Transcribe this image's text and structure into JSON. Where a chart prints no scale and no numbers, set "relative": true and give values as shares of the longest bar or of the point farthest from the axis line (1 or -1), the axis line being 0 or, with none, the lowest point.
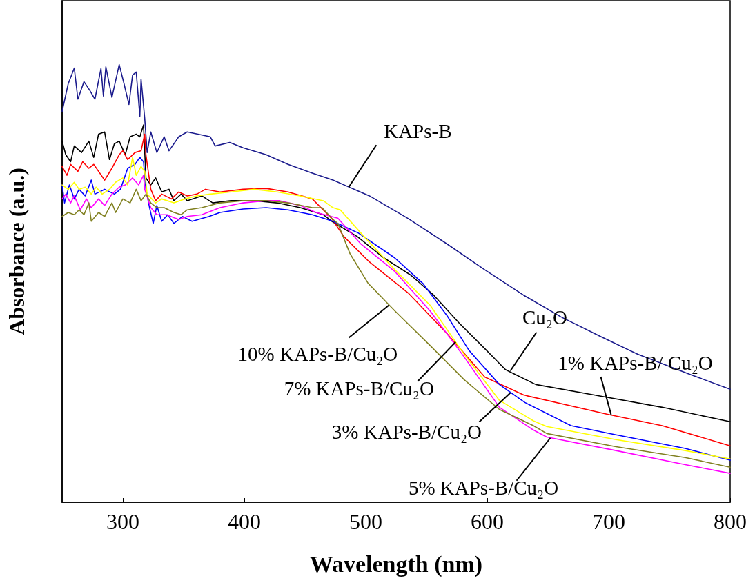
{
  "chart_data": {
    "type": "line",
    "xlabel": "Wavelength (nm)",
    "ylabel": "Absorbance (a.u.)",
    "relative": true,
    "annotations": [
      {
        "text": "KAPs-B",
        "x": 486,
        "y": 0.72
      },
      {
        "text": "Cu₂O",
        "x": 619,
        "y": 0.3
      },
      {
        "text": "1% KAPs-B/ Cu₂O",
        "x": 702,
        "y": 0.2
      },
      {
        "text": "3% KAPs-B/Cu₂O",
        "x": 619,
        "y": 0.25
      },
      {
        "text": "5% KAPs-B/Cu₂O",
        "x": 652,
        "y": 0.147
      },
      {
        "text": "7% KAPs-B/Cu₂O",
        "x": 574,
        "y": 0.366
      },
      {
        "text": "10% KAPs-B/Cu₂O",
        "x": 519,
        "y": 0.45
      }
    ],
    "xlim": [
      250,
      800
    ],
    "xticks": [
      300,
      400,
      500,
      600,
      700,
      800
    ],
    "series": [
      {
        "color": "#1a1a8c",
        "x": [
          250,
          255,
          260,
          263,
          268,
          273,
          277,
          282,
          284,
          286,
          291,
          297,
          301,
          305,
          308,
          311,
          314,
          315,
          318,
          320,
          323,
          328,
          334,
          338,
          346,
          353,
          372,
          376,
          388,
          399,
          418,
          436,
          456,
          473,
          503,
          535,
          567,
          598,
          630,
          661,
          693,
          724,
          767,
          800
        ],
        "values": [
          0.893,
          0.956,
          0.992,
          0.921,
          0.961,
          0.94,
          0.921,
          0.991,
          0.928,
          0.995,
          0.925,
          1,
          0.956,
          0.909,
          0.976,
          0.983,
          0.882,
          0.967,
          0.877,
          0.799,
          0.846,
          0.799,
          0.835,
          0.803,
          0.835,
          0.846,
          0.835,
          0.814,
          0.822,
          0.81,
          0.794,
          0.772,
          0.752,
          0.736,
          0.7,
          0.648,
          0.59,
          0.531,
          0.473,
          0.423,
          0.379,
          0.338,
          0.292,
          0.258
        ]
      },
      {
        "color": "#000000",
        "x": [
          250,
          253,
          257,
          260,
          266,
          272,
          276,
          280,
          285,
          289,
          293,
          297,
          302,
          306,
          311,
          314,
          317,
          319,
          323,
          327,
          332,
          338,
          342,
          348,
          353,
          365,
          374,
          389,
          408,
          427,
          446,
          465,
          472,
          493,
          514,
          537,
          556,
          577,
          598,
          615,
          640,
          688,
          744,
          800
        ],
        "values": [
          0.825,
          0.794,
          0.778,
          0.814,
          0.799,
          0.825,
          0.788,
          0.841,
          0.846,
          0.783,
          0.819,
          0.825,
          0.794,
          0.835,
          0.841,
          0.835,
          0.862,
          0.741,
          0.725,
          0.741,
          0.709,
          0.715,
          0.689,
          0.704,
          0.689,
          0.7,
          0.684,
          0.689,
          0.689,
          0.684,
          0.673,
          0.657,
          0.642,
          0.607,
          0.56,
          0.519,
          0.473,
          0.409,
          0.351,
          0.303,
          0.269,
          0.245,
          0.217,
          0.184
        ]
      },
      {
        "color": "#ff0000",
        "x": [
          250,
          254,
          257,
          263,
          267,
          272,
          276,
          280,
          285,
          291,
          297,
          300,
          304,
          310,
          315,
          318,
          319,
          323,
          327,
          332,
          340,
          346,
          353,
          361,
          368,
          380,
          399,
          418,
          436,
          456,
          467,
          472,
          482,
          503,
          535,
          567,
          598,
          630,
          699,
          744,
          800
        ],
        "values": [
          0.767,
          0.747,
          0.772,
          0.756,
          0.778,
          0.763,
          0.772,
          0.756,
          0.736,
          0.763,
          0.794,
          0.803,
          0.783,
          0.799,
          0.803,
          0.841,
          0.794,
          0.715,
          0.689,
          0.704,
          0.693,
          0.709,
          0.7,
          0.704,
          0.715,
          0.709,
          0.715,
          0.717,
          0.709,
          0.693,
          0.662,
          0.648,
          0.607,
          0.549,
          0.478,
          0.385,
          0.286,
          0.245,
          0.201,
          0.175,
          0.129
        ]
      },
      {
        "color": "#0000ff",
        "x": [
          250,
          252,
          256,
          260,
          264,
          269,
          274,
          277,
          285,
          293,
          298,
          304,
          310,
          314,
          317,
          319,
          322,
          325,
          328,
          332,
          337,
          342,
          349,
          357,
          371,
          380,
          399,
          418,
          436,
          456,
          473,
          494,
          524,
          547,
          567,
          585,
          610,
          631,
          669,
          706,
          763,
          800
        ],
        "values": [
          0.725,
          0.684,
          0.725,
          0.693,
          0.715,
          0.7,
          0.736,
          0.704,
          0.715,
          0.704,
          0.715,
          0.763,
          0.772,
          0.788,
          0.778,
          0.715,
          0.673,
          0.637,
          0.678,
          0.642,
          0.657,
          0.637,
          0.653,
          0.642,
          0.653,
          0.662,
          0.67,
          0.673,
          0.668,
          0.657,
          0.642,
          0.615,
          0.558,
          0.5,
          0.426,
          0.347,
          0.269,
          0.228,
          0.175,
          0.154,
          0.123,
          0.096
        ]
      },
      {
        "color": "#ff00ff",
        "x": [
          250,
          253,
          257,
          260,
          265,
          270,
          274,
          280,
          285,
          291,
          297,
          302,
          308,
          313,
          317,
          318,
          323,
          328,
          336,
          346,
          353,
          365,
          380,
          399,
          418,
          429,
          446,
          459,
          477,
          496,
          524,
          553,
          581,
          610,
          638,
          649,
          706,
          763,
          800
        ],
        "values": [
          0.693,
          0.704,
          0.684,
          0.7,
          0.668,
          0.693,
          0.673,
          0.693,
          0.678,
          0.704,
          0.72,
          0.725,
          0.741,
          0.725,
          0.747,
          0.715,
          0.673,
          0.657,
          0.657,
          0.646,
          0.653,
          0.657,
          0.673,
          0.684,
          0.689,
          0.689,
          0.678,
          0.662,
          0.649,
          0.59,
          0.527,
          0.437,
          0.332,
          0.217,
          0.165,
          0.149,
          0.118,
          0.086,
          0.066
        ]
      },
      {
        "color": "#ffff00",
        "x": [
          250,
          255,
          260,
          264,
          269,
          274,
          278,
          283,
          289,
          294,
          300,
          304,
          308,
          311,
          315,
          318,
          320,
          327,
          332,
          342,
          351,
          361,
          372,
          389,
          408,
          427,
          446,
          465,
          473,
          479,
          496,
          524,
          553,
          581,
          610,
          638,
          649,
          706,
          763,
          800
        ],
        "values": [
          0.725,
          0.715,
          0.731,
          0.715,
          0.72,
          0.704,
          0.72,
          0.704,
          0.715,
          0.731,
          0.741,
          0.725,
          0.788,
          0.747,
          0.767,
          0.756,
          0.704,
          0.684,
          0.693,
          0.684,
          0.693,
          0.7,
          0.704,
          0.709,
          0.715,
          0.709,
          0.7,
          0.689,
          0.673,
          0.668,
          0.615,
          0.531,
          0.45,
          0.338,
          0.233,
          0.186,
          0.173,
          0.143,
          0.118,
          0.099
        ]
      },
      {
        "color": "#808020",
        "x": [
          250,
          255,
          260,
          264,
          268,
          272,
          274,
          280,
          285,
          291,
          294,
          300,
          306,
          311,
          315,
          319,
          323,
          328,
          334,
          342,
          348,
          353,
          365,
          380,
          399,
          418,
          436,
          456,
          464,
          473,
          477,
          487,
          502,
          524,
          553,
          581,
          610,
          638,
          649,
          706,
          763,
          800
        ],
        "values": [
          0.653,
          0.662,
          0.657,
          0.668,
          0.657,
          0.684,
          0.642,
          0.662,
          0.653,
          0.684,
          0.662,
          0.693,
          0.684,
          0.715,
          0.689,
          0.704,
          0.684,
          0.673,
          0.673,
          0.662,
          0.657,
          0.668,
          0.673,
          0.684,
          0.689,
          0.689,
          0.684,
          0.673,
          0.673,
          0.646,
          0.637,
          0.568,
          0.5,
          0.437,
          0.358,
          0.28,
          0.212,
          0.175,
          0.157,
          0.127,
          0.102,
          0.08
        ]
      }
    ]
  }
}
